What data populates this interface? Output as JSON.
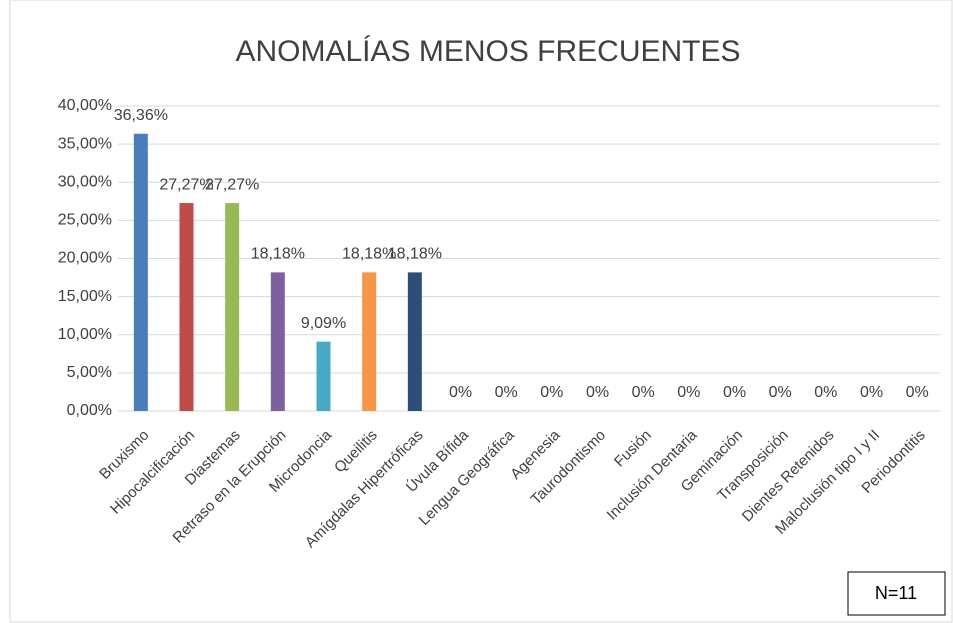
{
  "chart_data": {
    "type": "bar",
    "title": "ANOMALÍAS MENOS FRECUENTES",
    "categories": [
      "Bruxismo",
      "Hipocalcificación",
      "Diastemas",
      "Retraso en la Erupción",
      "Microdoncia",
      "Queilitis",
      "Amígdalas Hipertróficas",
      "Úvula Bífida",
      "Lengua Geográfica",
      "Agenesia",
      "Taurodontismo",
      "Fusión",
      "Inclusión Dentaria",
      "Geminación",
      "Transposición",
      "Dientes Retenidos",
      "Maloclusión tipo I y II",
      "Periodontitis"
    ],
    "values": [
      36.36,
      27.27,
      27.27,
      18.18,
      9.09,
      18.18,
      18.18,
      0,
      0,
      0,
      0,
      0,
      0,
      0,
      0,
      0,
      0,
      0
    ],
    "value_labels": [
      "36,36%",
      "27,27%",
      "27,27%",
      "18,18%",
      "9,09%",
      "18,18%",
      "18,18%",
      "0%",
      "0%",
      "0%",
      "0%",
      "0%",
      "0%",
      "0%",
      "0%",
      "0%",
      "0%",
      "0%"
    ],
    "colors": [
      "#4a7ebb",
      "#be4b48",
      "#98b954",
      "#7d60a0",
      "#46aac5",
      "#f79646",
      "#2c4d75"
    ],
    "ylim": [
      0,
      40
    ],
    "yticks": [
      {
        "value": 0,
        "label": "0,00%"
      },
      {
        "value": 5,
        "label": "5,00%"
      },
      {
        "value": 10,
        "label": "10,00%"
      },
      {
        "value": 15,
        "label": "15,00%"
      },
      {
        "value": 20,
        "label": "20,00%"
      },
      {
        "value": 25,
        "label": "25,00%"
      },
      {
        "value": 30,
        "label": "30,00%"
      },
      {
        "value": 35,
        "label": "35,00%"
      },
      {
        "value": 40,
        "label": "40,00%"
      }
    ],
    "grid": true,
    "annotation": "N=11"
  }
}
